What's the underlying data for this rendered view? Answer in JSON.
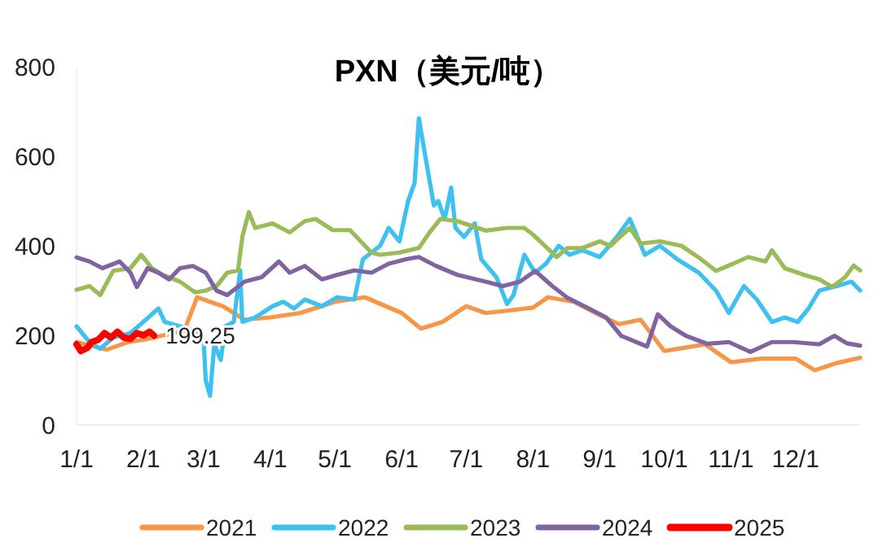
{
  "chart_data": {
    "type": "line",
    "title": "PXN（美元/吨）",
    "xlim": [
      "--01-01",
      "--12-31"
    ],
    "xticks": [
      {
        "value": "--01-01",
        "label": "1/1"
      },
      {
        "value": "--02-01",
        "label": "2/1"
      },
      {
        "value": "--03-01",
        "label": "3/1"
      },
      {
        "value": "--04-01",
        "label": "4/1"
      },
      {
        "value": "--05-01",
        "label": "5/1"
      },
      {
        "value": "--06-01",
        "label": "6/1"
      },
      {
        "value": "--07-01",
        "label": "7/1"
      },
      {
        "value": "--08-01",
        "label": "8/1"
      },
      {
        "value": "--09-01",
        "label": "9/1"
      },
      {
        "value": "--10-01",
        "label": "10/1"
      },
      {
        "value": "--11-01",
        "label": "11/1"
      },
      {
        "value": "--12-01",
        "label": "12/1"
      }
    ],
    "ylim": [
      0,
      800
    ],
    "yticks": [
      0,
      200,
      400,
      600,
      800
    ],
    "grid": false,
    "legend": "bottom",
    "line_style": "solid",
    "annotations": [
      {
        "text": "199.25",
        "x": "--02-06",
        "y": 199.25
      }
    ],
    "series": [
      {
        "name": "2021",
        "color": "#f79646",
        "x": [
          "--01-01",
          "--01-15",
          "--01-25",
          "--02-01",
          "--02-15",
          "--02-20",
          "--02-26",
          "--03-10",
          "--03-20",
          "--04-01",
          "--04-15",
          "--05-01",
          "--05-15",
          "--06-01",
          "--06-10",
          "--06-20",
          "--07-01",
          "--07-10",
          "--07-20",
          "--08-01",
          "--08-08",
          "--08-20",
          "--09-01",
          "--09-10",
          "--09-20",
          "--10-01",
          "--10-10",
          "--10-20",
          "--11-01",
          "--11-15",
          "--12-01",
          "--12-10",
          "--12-20",
          "--12-31"
        ],
        "values": [
          185,
          168,
          185,
          190,
          205,
          210,
          285,
          265,
          235,
          240,
          250,
          275,
          285,
          250,
          215,
          230,
          265,
          250,
          255,
          262,
          285,
          275,
          245,
          225,
          235,
          165,
          172,
          180,
          140,
          148,
          148,
          122,
          138,
          150
        ]
      },
      {
        "name": "2022",
        "color": "#3ec1f0",
        "x": [
          "--01-01",
          "--01-07",
          "--01-12",
          "--01-18",
          "--01-26",
          "--02-01",
          "--02-08",
          "--02-11",
          "--02-18",
          "--02-25",
          "--03-01",
          "--03-02",
          "--03-04",
          "--03-06",
          "--03-09",
          "--03-11",
          "--03-15",
          "--03-18",
          "--03-19",
          "--03-25",
          "--04-02",
          "--04-07",
          "--04-12",
          "--04-17",
          "--04-25",
          "--05-02",
          "--05-10",
          "--05-14",
          "--05-22",
          "--05-26",
          "--05-31",
          "--06-04",
          "--06-07",
          "--06-09",
          "--06-12",
          "--06-16",
          "--06-18",
          "--06-21",
          "--06-24",
          "--06-26",
          "--06-30",
          "--07-05",
          "--07-08",
          "--07-15",
          "--07-20",
          "--07-23",
          "--07-28",
          "--08-02",
          "--08-07",
          "--08-13",
          "--08-18",
          "--08-24",
          "--09-01",
          "--09-09",
          "--09-15",
          "--09-22",
          "--09-29",
          "--10-07",
          "--10-17",
          "--10-25",
          "--10-31",
          "--11-07",
          "--11-13",
          "--11-20",
          "--11-26",
          "--12-02",
          "--12-07",
          "--12-12",
          "--12-20",
          "--12-27",
          "--12-31"
        ],
        "values": [
          220,
          185,
          170,
          195,
          205,
          230,
          260,
          230,
          220,
          210,
          190,
          100,
          65,
          180,
          145,
          220,
          230,
          345,
          230,
          240,
          265,
          275,
          260,
          280,
          265,
          285,
          280,
          370,
          400,
          440,
          410,
          500,
          540,
          685,
          600,
          490,
          500,
          460,
          530,
          440,
          420,
          450,
          370,
          330,
          270,
          290,
          380,
          340,
          360,
          400,
          380,
          390,
          375,
          420,
          460,
          380,
          400,
          370,
          340,
          300,
          250,
          310,
          280,
          230,
          240,
          230,
          260,
          300,
          310,
          320,
          300
        ]
      },
      {
        "name": "2023",
        "color": "#9bbb59",
        "x": [
          "--01-01",
          "--01-07",
          "--01-12",
          "--01-18",
          "--01-26",
          "--01-31",
          "--02-05",
          "--02-10",
          "--02-18",
          "--02-25",
          "--03-02",
          "--03-07",
          "--03-12",
          "--03-17",
          "--03-19",
          "--03-22",
          "--03-25",
          "--04-02",
          "--04-10",
          "--04-17",
          "--04-22",
          "--04-30",
          "--05-08",
          "--05-13",
          "--05-18",
          "--05-22",
          "--05-31",
          "--06-09",
          "--06-14",
          "--06-19",
          "--06-27",
          "--07-10",
          "--07-20",
          "--07-28",
          "--08-01",
          "--08-07",
          "--08-12",
          "--08-17",
          "--08-24",
          "--09-01",
          "--09-06",
          "--09-15",
          "--09-20",
          "--09-29",
          "--10-09",
          "--10-17",
          "--10-25",
          "--11-02",
          "--11-09",
          "--11-17",
          "--11-20",
          "--11-26",
          "--12-05",
          "--12-12",
          "--12-18",
          "--12-24",
          "--12-28",
          "--12-31"
        ],
        "values": [
          302,
          310,
          290,
          344,
          350,
          380,
          350,
          335,
          320,
          296,
          300,
          310,
          340,
          345,
          420,
          475,
          440,
          450,
          430,
          455,
          460,
          435,
          435,
          410,
          385,
          380,
          385,
          395,
          430,
          460,
          455,
          434,
          440,
          440,
          425,
          398,
          375,
          395,
          395,
          410,
          400,
          440,
          405,
          410,
          400,
          374,
          344,
          360,
          375,
          365,
          390,
          350,
          335,
          325,
          308,
          330,
          356,
          345
        ]
      },
      {
        "name": "2024",
        "color": "#8064a2",
        "x": [
          "--01-01",
          "--01-07",
          "--01-13",
          "--01-21",
          "--01-26",
          "--01-29",
          "--02-03",
          "--02-08",
          "--02-13",
          "--02-18",
          "--02-24",
          "--03-02",
          "--03-07",
          "--03-12",
          "--03-20",
          "--03-28",
          "--04-05",
          "--04-10",
          "--04-17",
          "--04-25",
          "--05-02",
          "--05-10",
          "--05-18",
          "--05-26",
          "--06-03",
          "--06-09",
          "--06-17",
          "--06-27",
          "--07-10",
          "--07-18",
          "--07-26",
          "--08-02",
          "--08-10",
          "--08-17",
          "--08-27",
          "--09-04",
          "--09-11",
          "--09-23",
          "--09-28",
          "--10-04",
          "--10-11",
          "--10-21",
          "--10-31",
          "--11-10",
          "--11-20",
          "--11-30",
          "--12-12",
          "--12-19",
          "--12-25",
          "--12-31"
        ],
        "values": [
          374,
          365,
          350,
          365,
          340,
          308,
          350,
          340,
          325,
          350,
          355,
          340,
          300,
          290,
          320,
          330,
          365,
          340,
          355,
          325,
          335,
          345,
          340,
          360,
          370,
          375,
          355,
          335,
          320,
          310,
          320,
          344,
          310,
          284,
          260,
          240,
          199,
          175,
          247,
          220,
          199,
          181,
          185,
          163,
          185,
          185,
          180,
          199,
          182,
          177
        ]
      },
      {
        "name": "2025",
        "color": "#ff0000",
        "x": [
          "--01-01",
          "--01-03",
          "--01-06",
          "--01-08",
          "--01-11",
          "--01-14",
          "--01-17",
          "--01-20",
          "--01-23",
          "--01-26",
          "--01-29",
          "--02-01",
          "--02-04",
          "--02-06"
        ],
        "values": [
          180,
          165,
          172,
          185,
          190,
          205,
          195,
          208,
          195,
          192,
          205,
          200,
          208,
          199.25
        ]
      }
    ]
  }
}
